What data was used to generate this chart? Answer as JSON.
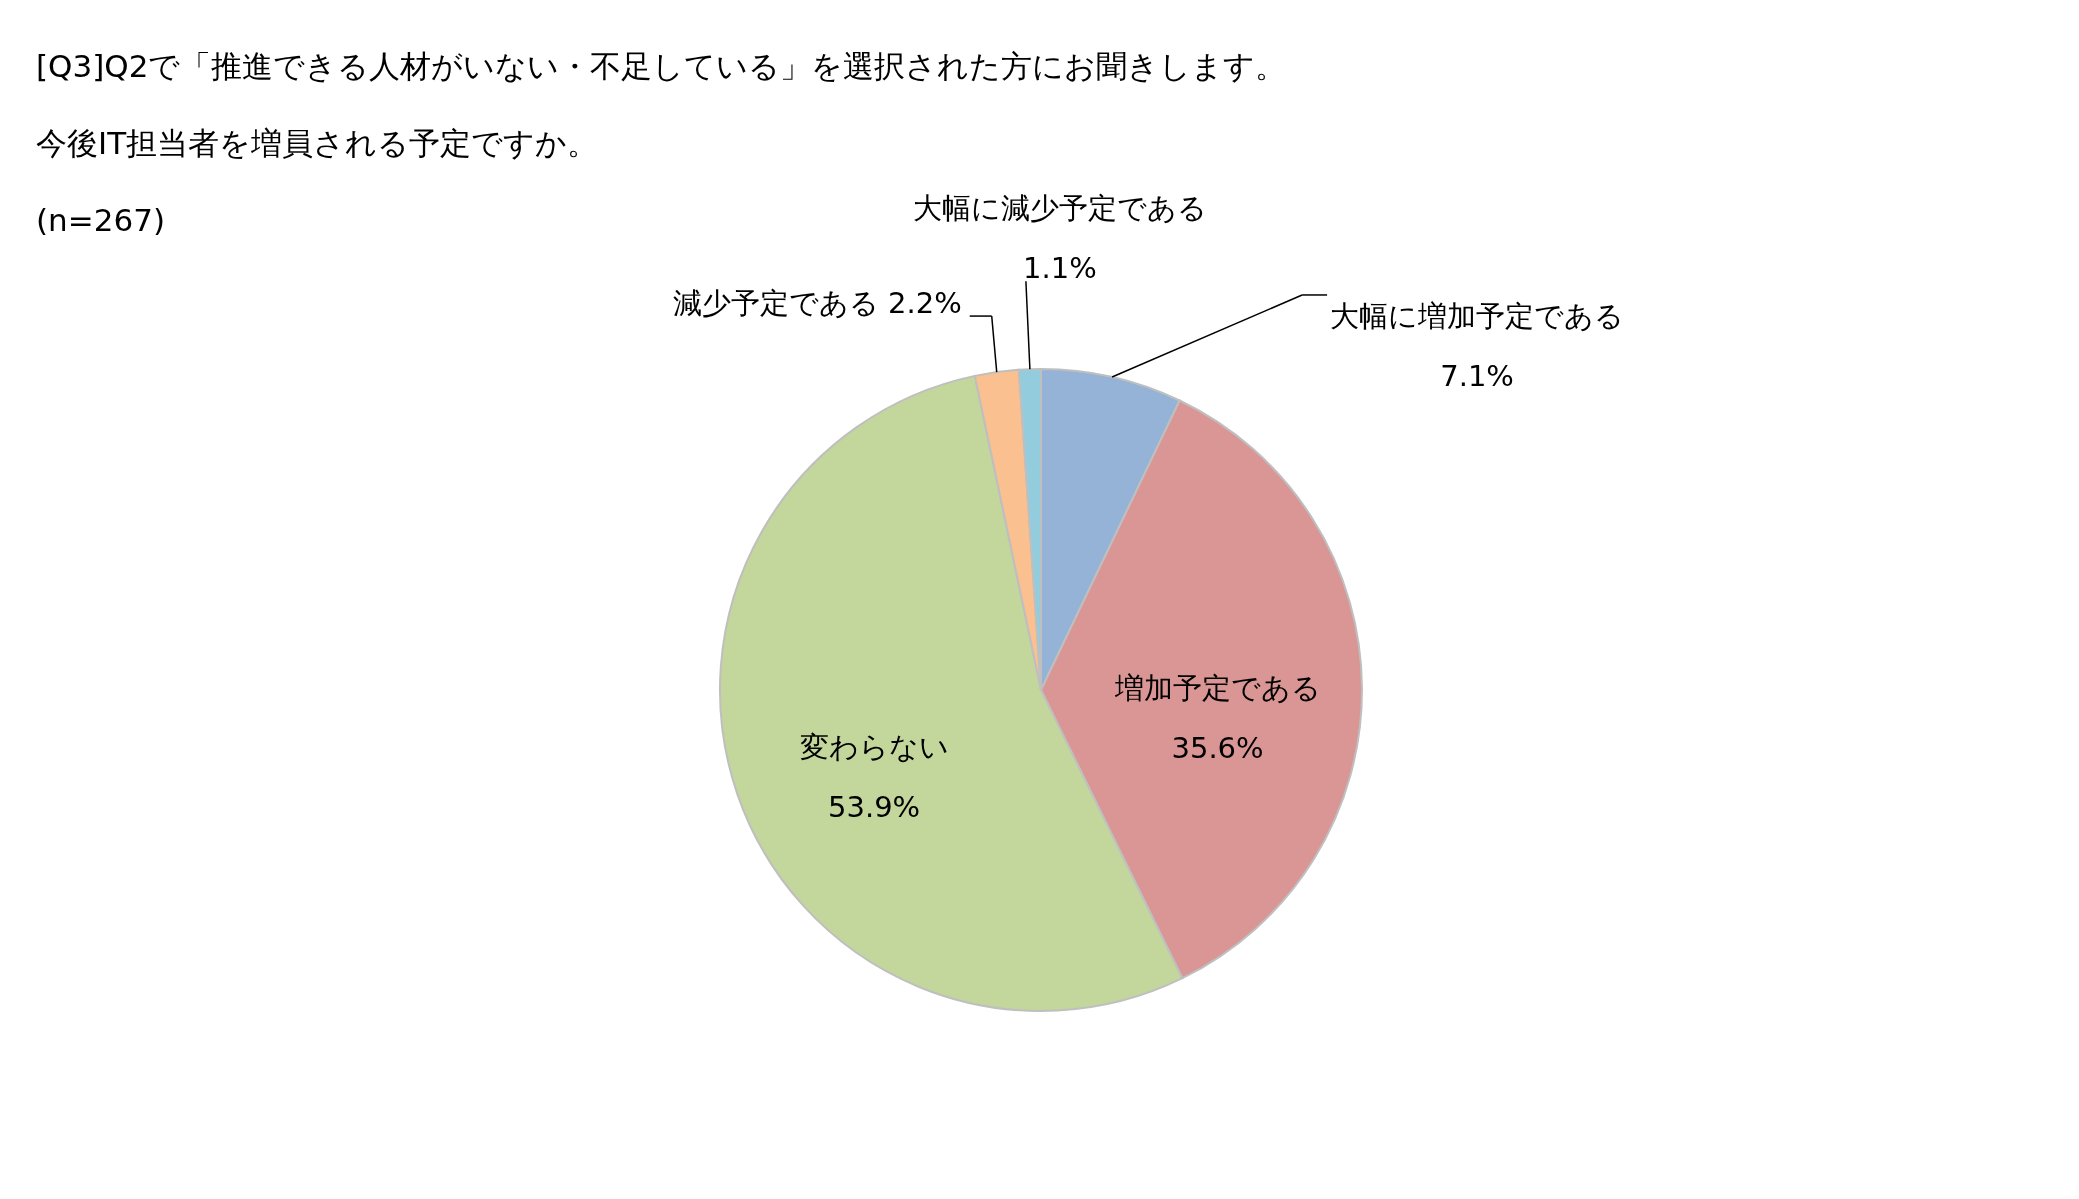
{
  "chart_data": {
    "type": "pie",
    "title": "[Q3]Q2で「推進できる人材がいない・不足している」を選択された方にお聞きします。",
    "subtitle": "今後IT担当者を増員される予定ですか。",
    "annotations": [
      "(n=267)"
    ],
    "categories": [
      "大幅に増加予定である",
      "増加予定である",
      "変わらない",
      "減少予定である",
      "大幅に減少予定である"
    ],
    "values": [
      7.1,
      35.6,
      53.9,
      2.2,
      1.1
    ],
    "value_labels": [
      "7.1%",
      "35.6%",
      "53.9%",
      "2.2%",
      "1.1%"
    ],
    "colors": [
      "#95b3d7",
      "#d99694",
      "#c3d69b",
      "#fac090",
      "#93cddd"
    ]
  }
}
